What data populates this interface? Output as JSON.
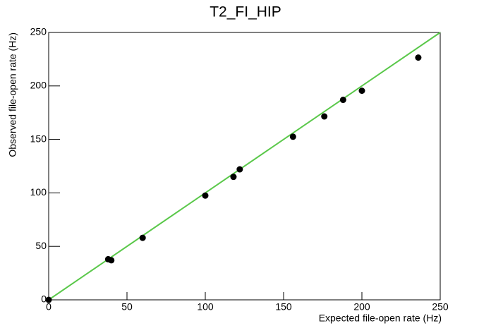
{
  "chart_data": {
    "type": "scatter",
    "title": "T2_FI_HIP",
    "x_label": "Expected file-open rate (Hz)",
    "y_label": "Observed file-open rate (Hz)",
    "x": [
      0,
      38,
      40,
      60,
      100,
      118,
      122,
      156,
      176,
      188,
      200,
      236
    ],
    "values": [
      0,
      38,
      37,
      58,
      97.5,
      115,
      122,
      152.5,
      171.5,
      187,
      195.5,
      226.5
    ],
    "color": "#000000",
    "fit": {
      "x": [
        0,
        250
      ],
      "y": [
        0,
        250
      ],
      "color": "#5ac84a"
    },
    "xlim": [
      0,
      250
    ],
    "ylim": [
      0,
      250
    ],
    "xticks": [
      0,
      50,
      100,
      150,
      200,
      250
    ],
    "yticks": [
      0,
      50,
      100,
      150,
      200,
      250
    ]
  }
}
